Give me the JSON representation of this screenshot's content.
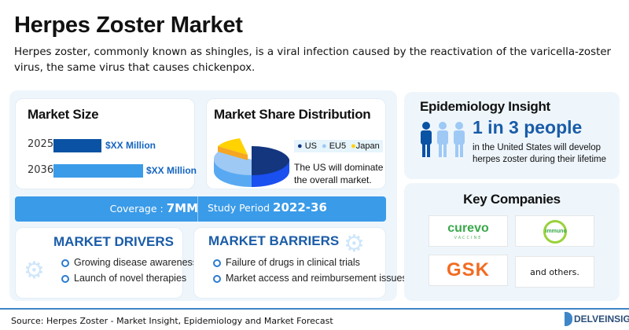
{
  "header": {
    "title": "Herpes Zoster Market",
    "description": "Herpes zoster, commonly known as shingles, is a viral infection caused by the reactivation of the varicella-zoster virus, the same virus that causes chickenpox."
  },
  "market_size": {
    "title": "Market Size",
    "rows": [
      {
        "year": "2025",
        "value": "$XX Million",
        "color": "#0a52a3"
      },
      {
        "year": "2036",
        "value": "$XX Million",
        "color": "#3a9be8"
      }
    ]
  },
  "market_share": {
    "title": "Market Share Distribution",
    "legend": [
      {
        "label": "US",
        "color": "#14367f"
      },
      {
        "label": "EU5",
        "color": "#9ec9f5"
      },
      {
        "label": "Japan",
        "color": "#ffd200"
      }
    ],
    "note": "The US will dominate the overall market."
  },
  "coverage": {
    "label": "Coverage :",
    "value": "7MM",
    "period_label": "Study Period",
    "period_value": "2022-36"
  },
  "drivers": {
    "title": "MARKET DRIVERS",
    "items": [
      "Growing disease awareness",
      "Launch of novel therapies"
    ]
  },
  "barriers": {
    "title": "MARKET BARRIERS",
    "items": [
      "Failure of drugs in clinical trials",
      "Market access and reimbursement issues"
    ]
  },
  "epidemiology": {
    "title": "Epidemiology Insight",
    "headline": "1 in 3 people",
    "text": "in the United States will develop herpes zoster during their lifetime"
  },
  "companies": {
    "title": "Key Companies",
    "logos": [
      {
        "name": "curevo",
        "tagline": "VACCINE"
      },
      {
        "name": "immuno"
      },
      {
        "name": "GSK"
      }
    ],
    "others": "and others."
  },
  "footer": {
    "source": "Source: Herpes Zoster - Market Insight, Epidemiology and Market Forecast",
    "brand": "DELVEINSIGHT"
  }
}
